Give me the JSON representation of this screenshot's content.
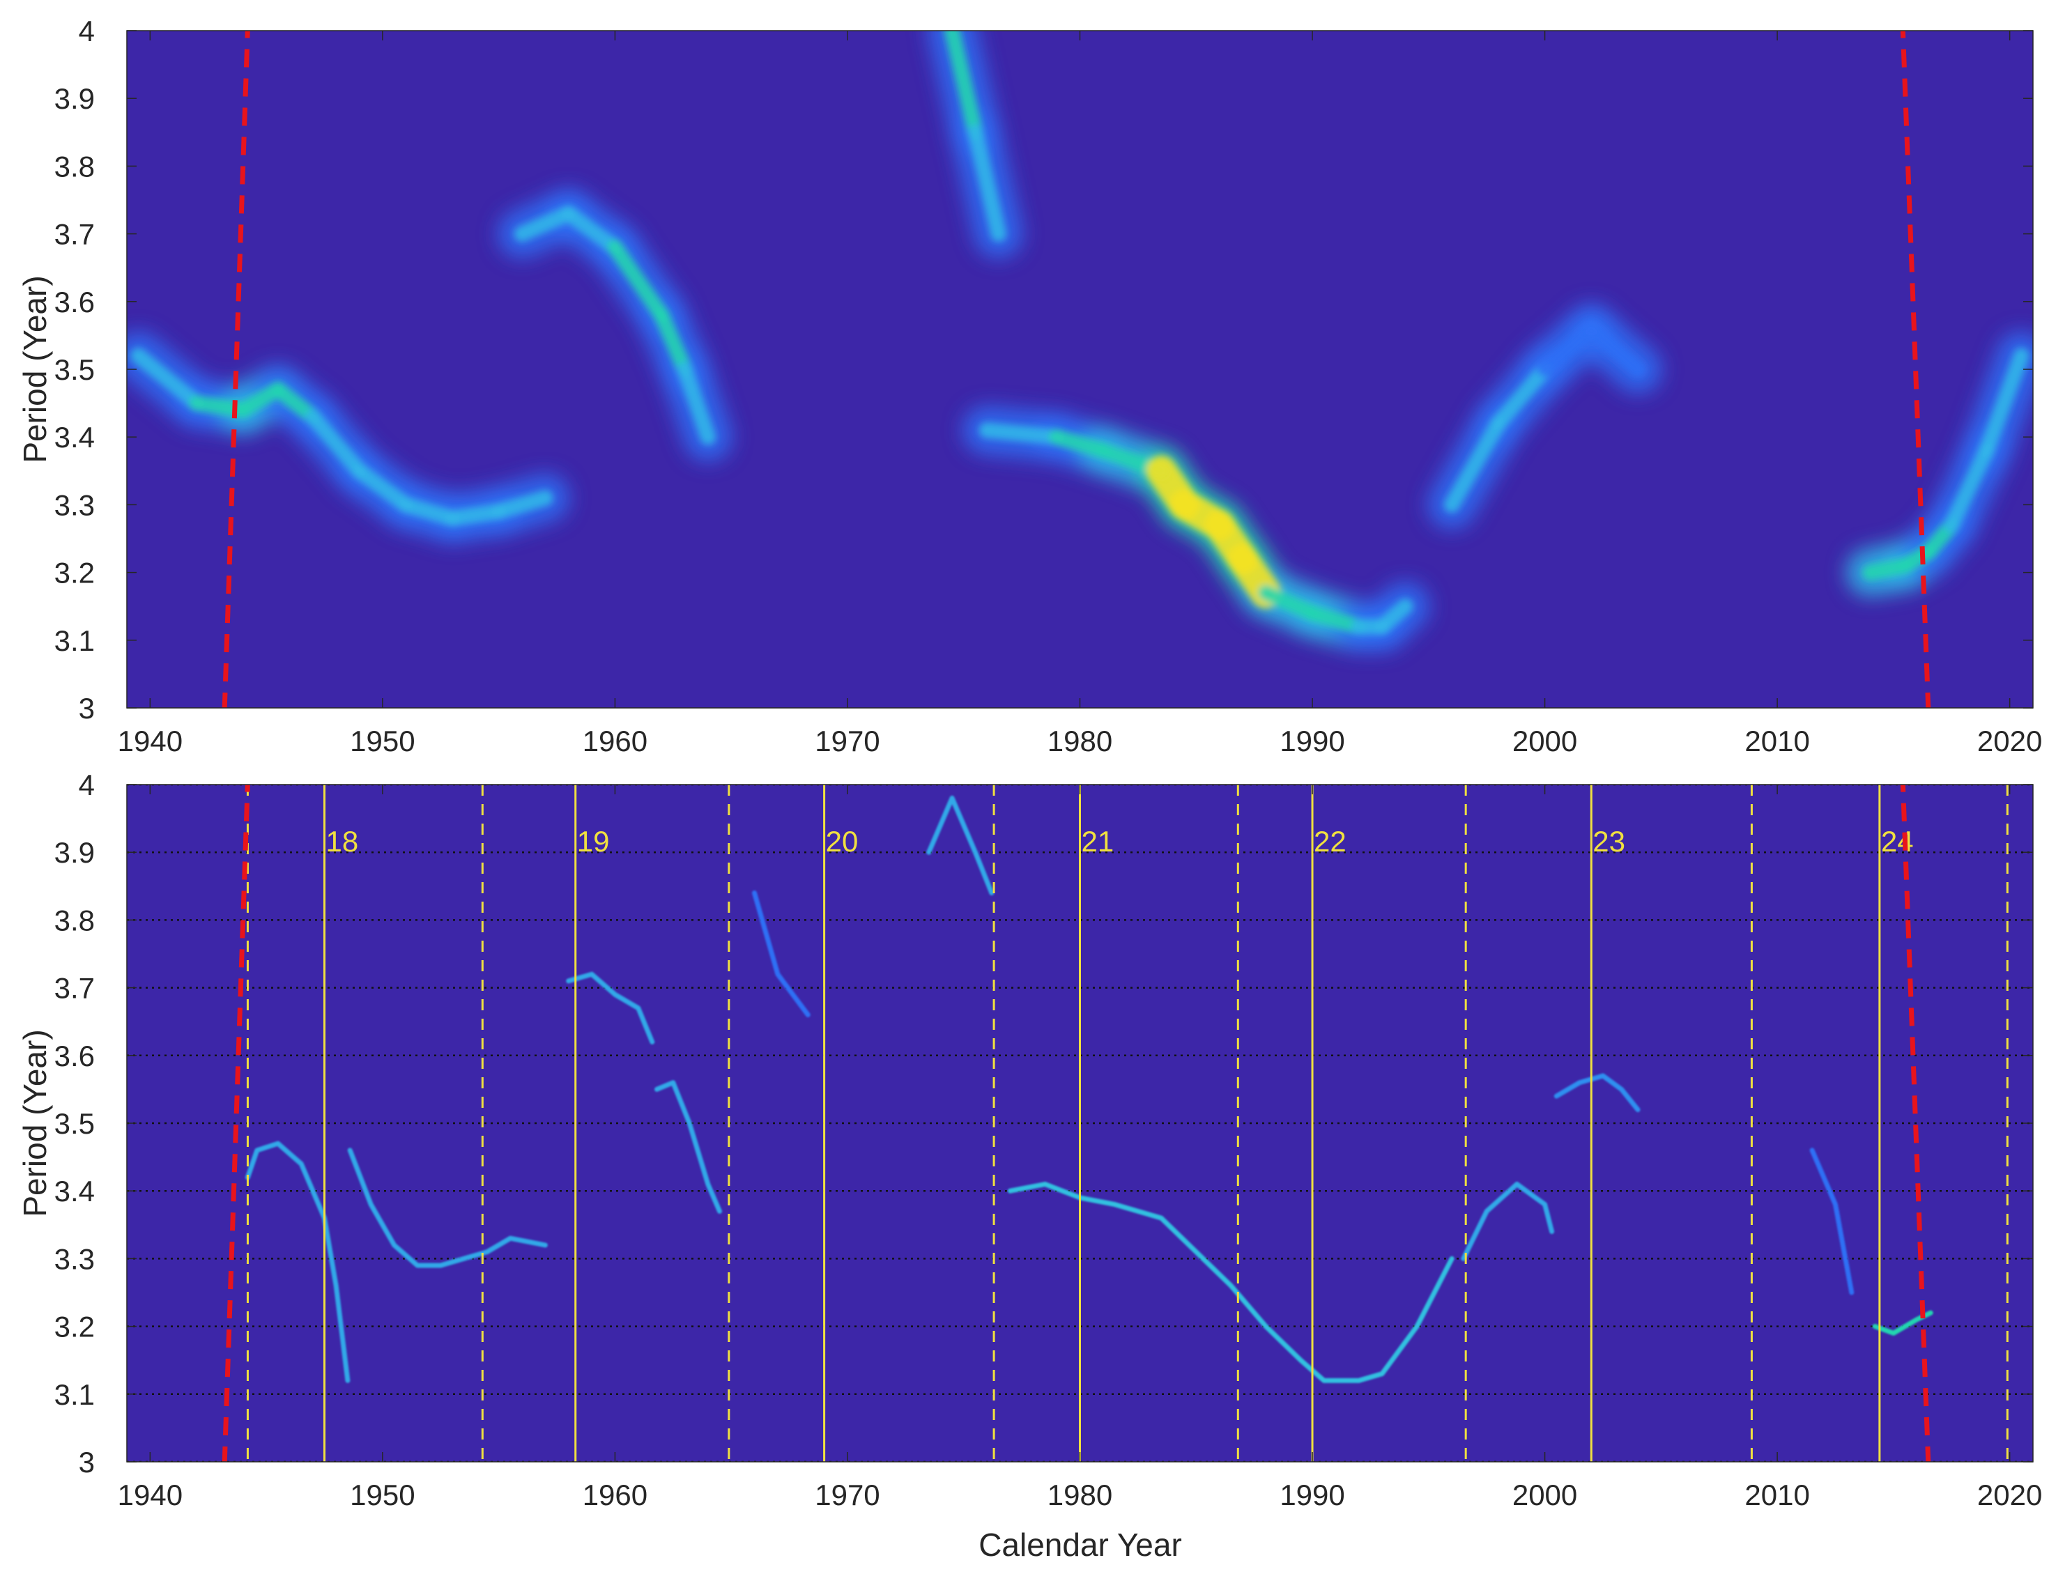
{
  "chart_data": [
    {
      "type": "heatmap",
      "title": "",
      "xlabel": "",
      "ylabel": "Period (Year)",
      "xlim": [
        1939,
        2021
      ],
      "ylim": [
        3,
        4
      ],
      "x_ticks": [
        "1940",
        "1950",
        "1960",
        "1970",
        "1980",
        "1990",
        "2000",
        "2010",
        "2020"
      ],
      "y_ticks": [
        "3",
        "3.1",
        "3.2",
        "3.3",
        "3.4",
        "3.5",
        "3.6",
        "3.7",
        "3.8",
        "3.9",
        "4"
      ],
      "grid": false,
      "background_color": "#3d26a8",
      "colormap": [
        "#3d26a8",
        "#2f6ff5",
        "#31b5e8",
        "#24d4b0",
        "#93e04d",
        "#f5e222",
        "#f9c02a"
      ],
      "ridges": [
        {
          "name": "",
          "points": [
            [
              1939.5,
              3.52
            ],
            [
              1942,
              3.45
            ],
            [
              1944,
              3.44
            ],
            [
              1945.5,
              3.47
            ],
            [
              1947,
              3.43
            ],
            [
              1949,
              3.35
            ],
            [
              1951,
              3.3
            ],
            [
              1953,
              3.28
            ],
            [
              1955,
              3.29
            ],
            [
              1957,
              3.31
            ]
          ],
          "intensity": [
            0.35,
            0.4,
            0.45,
            0.5,
            0.4,
            0.35,
            0.4,
            0.38,
            0.35,
            0.3
          ]
        },
        {
          "name": "",
          "points": [
            [
              1956,
              3.7
            ],
            [
              1958,
              3.73
            ],
            [
              1960,
              3.68
            ],
            [
              1962,
              3.58
            ],
            [
              1963,
              3.5
            ],
            [
              1964,
              3.4
            ]
          ],
          "intensity": [
            0.3,
            0.35,
            0.35,
            0.5,
            0.4,
            0.25
          ]
        },
        {
          "name": "",
          "points": [
            [
              1974.5,
              4.0
            ],
            [
              1975.5,
              3.85
            ],
            [
              1976.5,
              3.7
            ]
          ],
          "intensity": [
            0.5,
            0.35,
            0.2
          ]
        },
        {
          "name": "",
          "points": [
            [
              1976,
              3.41
            ],
            [
              1979,
              3.4
            ],
            [
              1981,
              3.38
            ],
            [
              1983.5,
              3.35
            ],
            [
              1984.5,
              3.3
            ],
            [
              1986,
              3.27
            ],
            [
              1987,
              3.22
            ],
            [
              1988,
              3.17
            ],
            [
              1990,
              3.14
            ],
            [
              1992,
              3.12
            ],
            [
              1993,
              3.12
            ],
            [
              1994,
              3.15
            ]
          ],
          "intensity": [
            0.35,
            0.4,
            0.45,
            0.6,
            0.95,
            0.85,
            0.9,
            0.65,
            0.5,
            0.45,
            0.35,
            0.3
          ]
        },
        {
          "name": "",
          "points": [
            [
              1996,
              3.3
            ],
            [
              1998,
              3.42
            ],
            [
              2000,
              3.5
            ],
            [
              2002,
              3.56
            ],
            [
              2004,
              3.5
            ]
          ],
          "intensity": [
            0.25,
            0.35,
            0.25,
            0.2,
            0.15
          ]
        },
        {
          "name": "",
          "points": [
            [
              2014,
              3.2
            ],
            [
              2015.5,
              3.21
            ],
            [
              2016.5,
              3.23
            ],
            [
              2017.5,
              3.27
            ],
            [
              2019,
              3.38
            ],
            [
              2020.5,
              3.52
            ]
          ],
          "intensity": [
            0.45,
            0.55,
            0.45,
            0.4,
            0.35,
            0.3
          ]
        }
      ],
      "red_dashed_lines": [
        {
          "x_bottom": 1943.2,
          "x_top": 1944.2
        },
        {
          "x_bottom": 2016.5,
          "x_top": 2015.4
        }
      ],
      "red_line_color": "#e8141c"
    },
    {
      "type": "heatmap",
      "title": "",
      "xlabel": "Calendar Year",
      "ylabel": "Period (Year)",
      "xlim": [
        1939,
        2021
      ],
      "ylim": [
        3,
        4
      ],
      "x_ticks": [
        "1940",
        "1950",
        "1960",
        "1970",
        "1980",
        "1990",
        "2000",
        "2010",
        "2020"
      ],
      "y_ticks": [
        "3",
        "3.1",
        "3.2",
        "3.3",
        "3.4",
        "3.5",
        "3.6",
        "3.7",
        "3.8",
        "3.9",
        "4"
      ],
      "grid": true,
      "grid_style": "dotted horizontal",
      "background_color": "#3d26a8",
      "ridge_lines": [
        {
          "name": "",
          "points": [
            [
              1944.2,
              3.42
            ],
            [
              1944.6,
              3.46
            ],
            [
              1945.5,
              3.47
            ],
            [
              1946.5,
              3.44
            ],
            [
              1947.5,
              3.36
            ],
            [
              1948,
              3.26
            ],
            [
              1948.5,
              3.12
            ]
          ],
          "color": "#31a8e8"
        },
        {
          "name": "",
          "points": [
            [
              1948.6,
              3.46
            ],
            [
              1949.5,
              3.38
            ],
            [
              1950.5,
              3.32
            ],
            [
              1951.5,
              3.29
            ],
            [
              1952.5,
              3.29
            ],
            [
              1953.5,
              3.3
            ],
            [
              1954.5,
              3.31
            ],
            [
              1955.5,
              3.33
            ],
            [
              1957,
              3.32
            ]
          ],
          "color": "#31a8e8"
        },
        {
          "name": "",
          "points": [
            [
              1958,
              3.71
            ],
            [
              1959,
              3.72
            ],
            [
              1960,
              3.69
            ],
            [
              1961,
              3.67
            ],
            [
              1961.6,
              3.62
            ]
          ],
          "color": "#31a8e8"
        },
        {
          "name": "",
          "points": [
            [
              1961.8,
              3.55
            ],
            [
              1962.5,
              3.56
            ],
            [
              1963.2,
              3.5
            ],
            [
              1964,
              3.41
            ],
            [
              1964.5,
              3.37
            ]
          ],
          "color": "#31a8e8"
        },
        {
          "name": "",
          "points": [
            [
              1966,
              3.84
            ],
            [
              1967,
              3.72
            ],
            [
              1968.3,
              3.66
            ]
          ],
          "color": "#2f6ff5"
        },
        {
          "name": "",
          "points": [
            [
              1973.5,
              3.9
            ],
            [
              1974.5,
              3.98
            ],
            [
              1975.5,
              3.9
            ],
            [
              1976.2,
              3.84
            ]
          ],
          "color": "#31a8e8"
        },
        {
          "name": "",
          "points": [
            [
              1977,
              3.4
            ],
            [
              1978.5,
              3.41
            ],
            [
              1980,
              3.39
            ],
            [
              1981.5,
              3.38
            ],
            [
              1983.5,
              3.36
            ],
            [
              1985,
              3.31
            ],
            [
              1986.5,
              3.26
            ],
            [
              1988,
              3.2
            ],
            [
              1989.5,
              3.15
            ],
            [
              1990.5,
              3.12
            ],
            [
              1992,
              3.12
            ],
            [
              1993,
              3.13
            ],
            [
              1994.5,
              3.2
            ],
            [
              1996,
              3.3
            ]
          ],
          "color": "#31c0e0"
        },
        {
          "name": "",
          "points": [
            [
              1996.5,
              3.3
            ],
            [
              1997.5,
              3.37
            ],
            [
              1998.8,
              3.41
            ],
            [
              2000,
              3.38
            ],
            [
              2000.3,
              3.34
            ]
          ],
          "color": "#31a8e8"
        },
        {
          "name": "",
          "points": [
            [
              2000.5,
              3.54
            ],
            [
              2001.5,
              3.56
            ],
            [
              2002.5,
              3.57
            ],
            [
              2003.3,
              3.55
            ],
            [
              2004,
              3.52
            ]
          ],
          "color": "#2f8ff0"
        },
        {
          "name": "",
          "points": [
            [
              2011.5,
              3.46
            ],
            [
              2012.5,
              3.38
            ],
            [
              2013.2,
              3.25
            ]
          ],
          "color": "#2f6ff5"
        },
        {
          "name": "",
          "points": [
            [
              2014.2,
              3.2
            ],
            [
              2015,
              3.19
            ],
            [
              2016,
              3.21
            ],
            [
              2016.6,
              3.22
            ]
          ],
          "color": "#24d4b0"
        }
      ],
      "cycle_labels": [
        {
          "label": "18",
          "x": 1947.5
        },
        {
          "label": "19",
          "x": 1958.3
        },
        {
          "label": "20",
          "x": 1969
        },
        {
          "label": "21",
          "x": 1980
        },
        {
          "label": "22",
          "x": 1990
        },
        {
          "label": "23",
          "x": 2002
        },
        {
          "label": "24",
          "x": 2014.4
        }
      ],
      "cycle_maxima_solid": [
        1947.5,
        1958.3,
        1969,
        1980,
        1990,
        2002,
        2014.4
      ],
      "cycle_minima_dashed": [
        1944.2,
        1954.3,
        1964.9,
        1976.3,
        1986.8,
        1996.6,
        2008.9,
        2019.9
      ],
      "cycle_line_color": "#f0e040",
      "red_dashed_lines": [
        {
          "x_bottom": 1943.2,
          "x_top": 1944.2
        },
        {
          "x_bottom": 2016.5,
          "x_top": 2015.4
        }
      ],
      "red_line_color": "#e8141c"
    }
  ]
}
